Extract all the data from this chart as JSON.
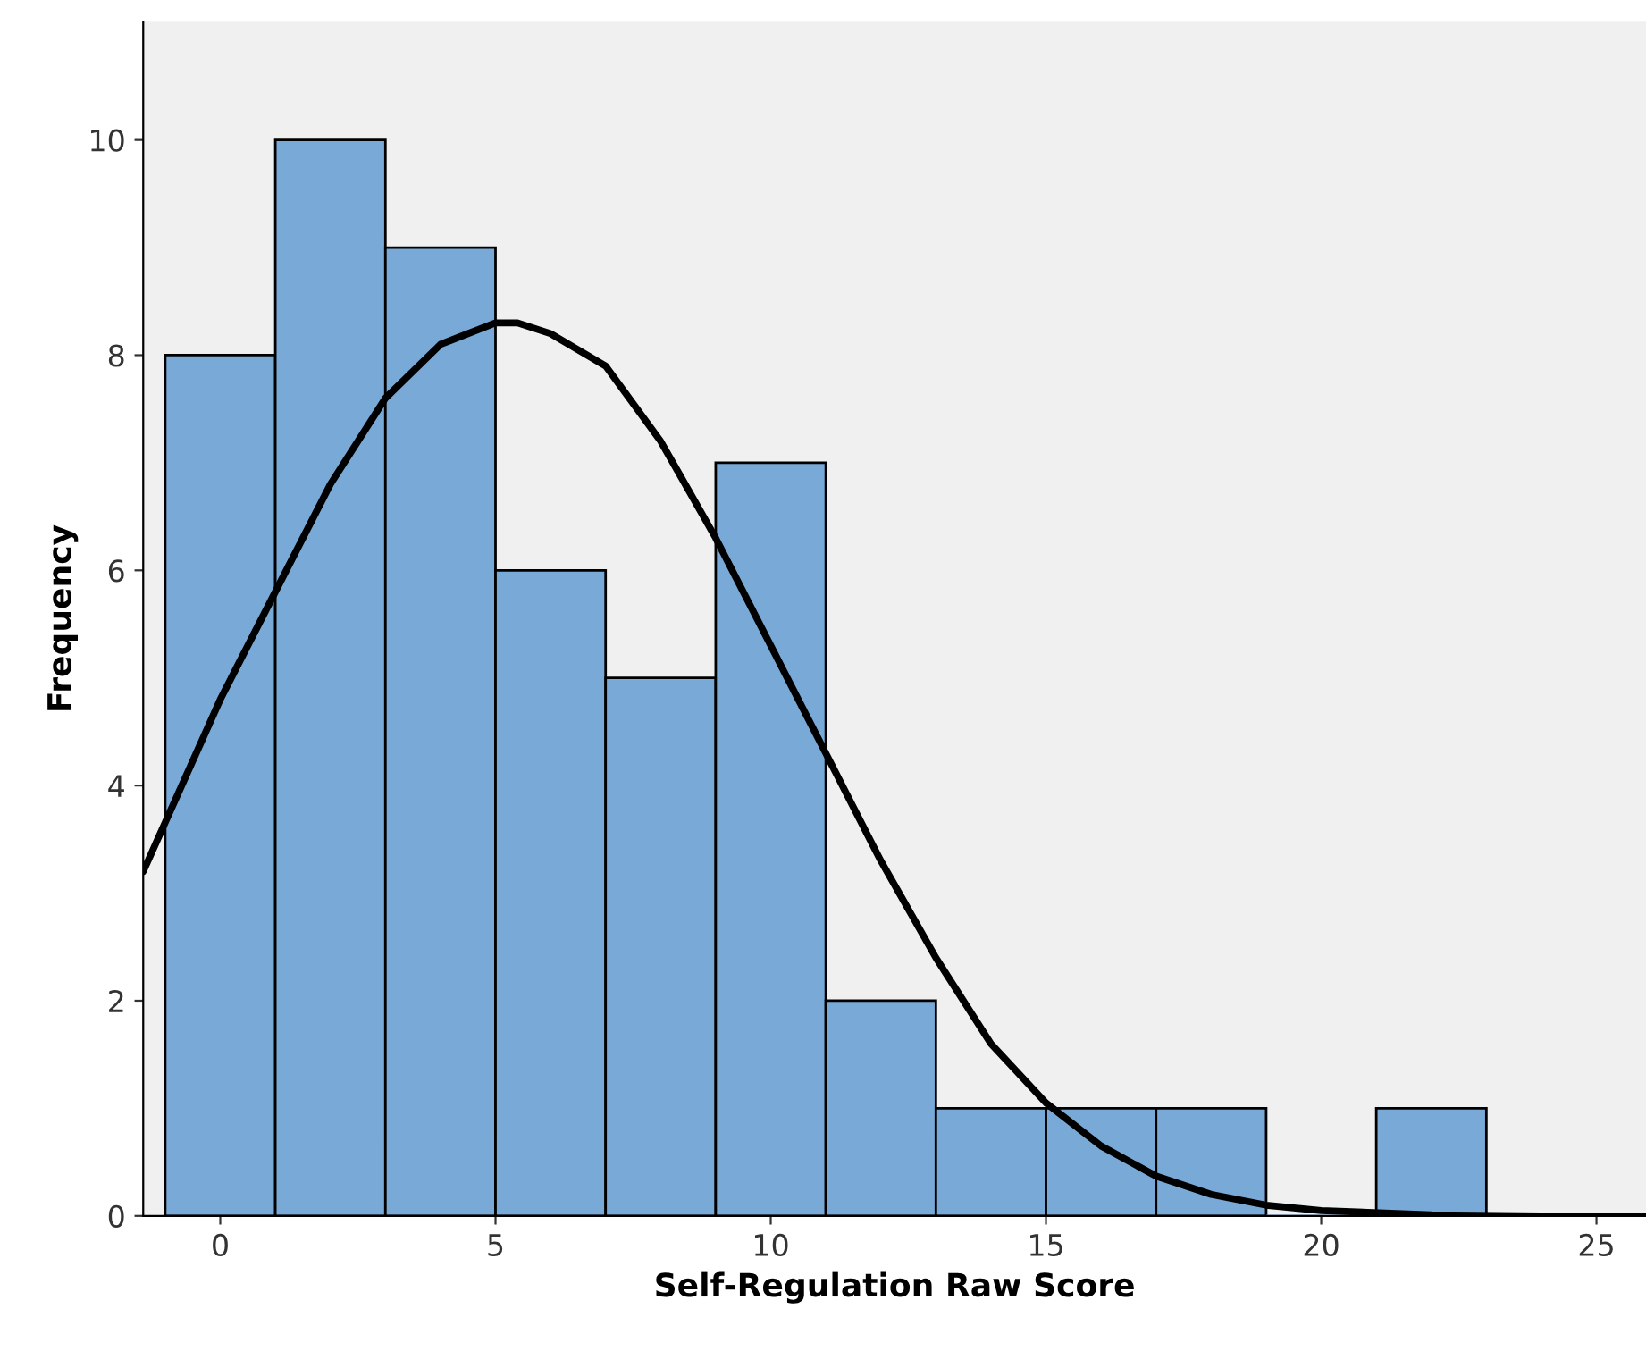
{
  "chart_data": {
    "type": "histogram",
    "xlabel": "Self-Regulation Raw Score",
    "ylabel": "Frequency",
    "bins": [
      -1,
      1,
      3,
      5,
      7,
      9,
      11,
      13,
      15,
      17,
      19,
      21,
      23
    ],
    "values": [
      8,
      10,
      9,
      6,
      5,
      7,
      2,
      1,
      1,
      1,
      0,
      1
    ],
    "color": "#79a9d6",
    "series": [
      {
        "type": "line",
        "color": "#000000",
        "x": [
          -1.4,
          0,
          1,
          2,
          3,
          4,
          5,
          5.4,
          6,
          7,
          8,
          9,
          10,
          11,
          12,
          13,
          14,
          15,
          16,
          17,
          18,
          19,
          20,
          22,
          24,
          25.9
        ],
        "values": [
          3.2,
          4.8,
          5.8,
          6.8,
          7.6,
          8.1,
          8.3,
          8.3,
          8.2,
          7.9,
          7.2,
          6.3,
          5.3,
          4.3,
          3.3,
          2.4,
          1.6,
          1.05,
          0.65,
          0.37,
          0.2,
          0.1,
          0.05,
          0.01,
          0.0,
          0.0
        ]
      }
    ],
    "xlim": [
      -1.4,
      25.9
    ],
    "ylim": [
      0,
      11.1
    ],
    "xticks": [
      0,
      5,
      10,
      15,
      20,
      25
    ],
    "yticks": [
      0,
      2,
      4,
      6,
      8,
      10
    ],
    "grid": false,
    "legend": false,
    "marker": "none",
    "line_style": "solid"
  }
}
